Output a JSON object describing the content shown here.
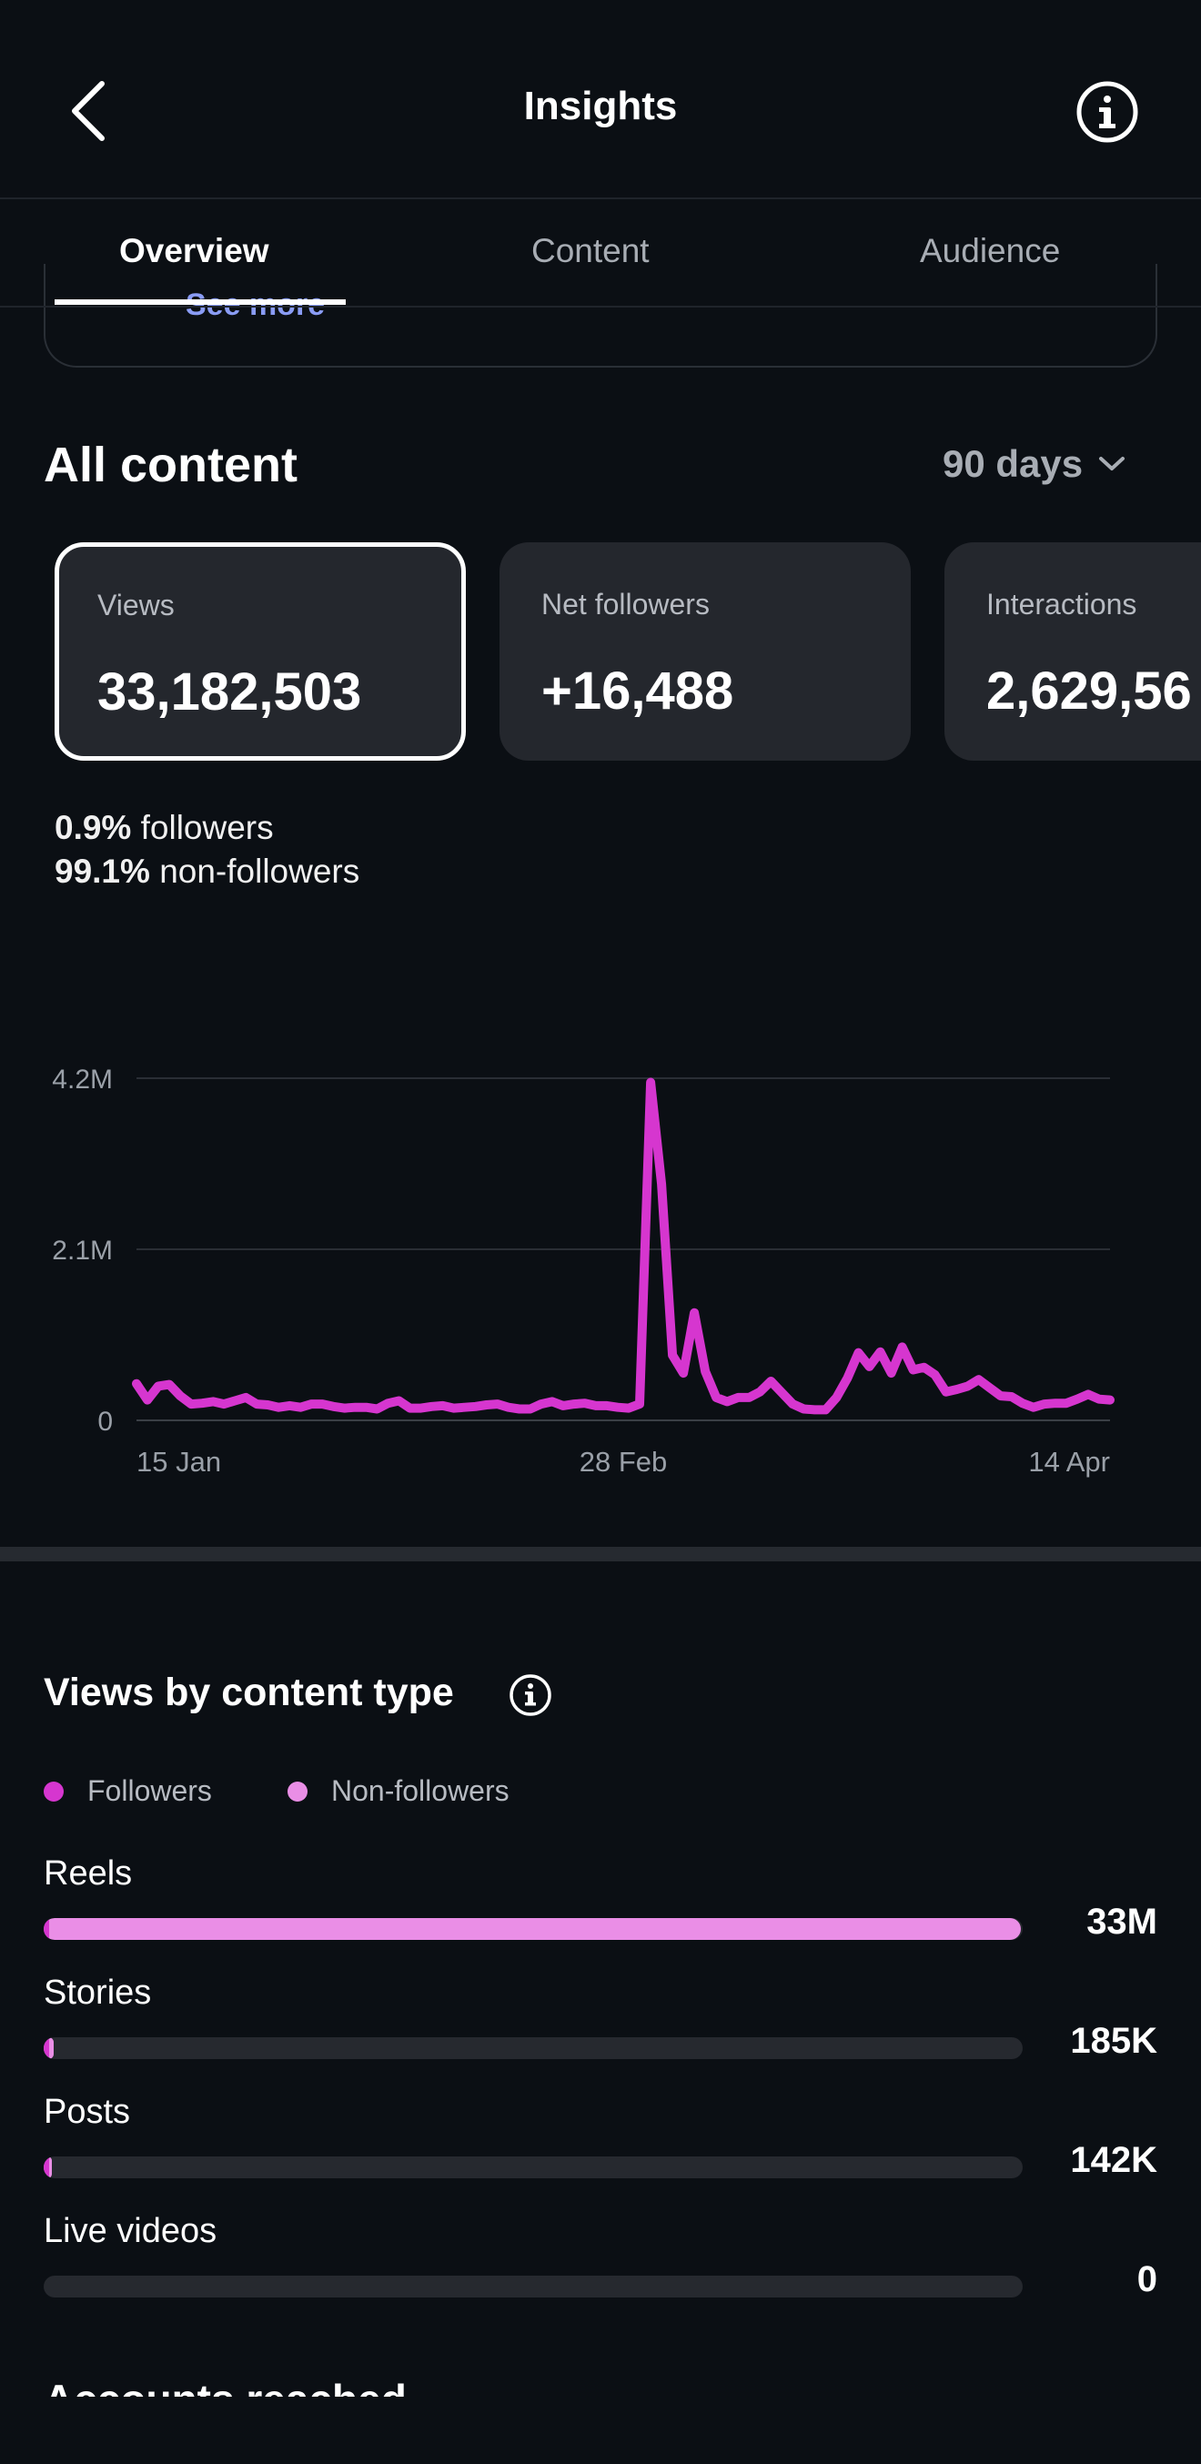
{
  "header": {
    "title": "Insights",
    "back_icon": "chevron-left-icon",
    "info_icon": "info-icon"
  },
  "tabs": [
    {
      "label": "Overview",
      "active": true
    },
    {
      "label": "Content",
      "active": false
    },
    {
      "label": "Audience",
      "active": false
    }
  ],
  "previous_card": {
    "see_more": "See more"
  },
  "all_content": {
    "title": "All content",
    "range": "90 days",
    "stats": [
      {
        "label": "Views",
        "value": "33,182,503",
        "selected": true
      },
      {
        "label": "Net followers",
        "value": "+16,488",
        "selected": false
      },
      {
        "label": "Interactions",
        "value": "2,629,56",
        "selected": false
      }
    ],
    "breakdown": [
      {
        "pct": "0.9%",
        "text": "followers"
      },
      {
        "pct": "99.1%",
        "text": "non-followers"
      }
    ]
  },
  "chart_data": {
    "type": "line",
    "y_ticks": [
      "4.2M",
      "2.1M",
      "0"
    ],
    "x_ticks": [
      "15 Jan",
      "28 Feb",
      "14 Apr"
    ],
    "ylim": [
      0,
      4200000
    ],
    "x_range": [
      "15 Jan",
      "14 Apr"
    ],
    "grid": true,
    "color": "#d636cf",
    "series": [
      {
        "values": [
          450000,
          250000,
          420000,
          440000,
          300000,
          200000,
          210000,
          230000,
          200000,
          240000,
          280000,
          200000,
          190000,
          160000,
          180000,
          160000,
          200000,
          200000,
          170000,
          150000,
          160000,
          160000,
          140000,
          210000,
          240000,
          150000,
          150000,
          170000,
          180000,
          150000,
          160000,
          170000,
          190000,
          200000,
          160000,
          140000,
          140000,
          200000,
          230000,
          180000,
          200000,
          210000,
          180000,
          180000,
          160000,
          150000,
          200000,
          4150000,
          2900000,
          800000,
          580000,
          1320000,
          600000,
          280000,
          230000,
          280000,
          280000,
          350000,
          480000,
          340000,
          200000,
          140000,
          130000,
          130000,
          280000,
          520000,
          830000,
          660000,
          840000,
          580000,
          900000,
          620000,
          650000,
          560000,
          350000,
          380000,
          420000,
          500000,
          400000,
          300000,
          290000,
          210000,
          160000,
          200000,
          210000,
          210000,
          260000,
          320000,
          260000,
          250000
        ]
      }
    ]
  },
  "views_by_content_type": {
    "title": "Views by content type",
    "info_icon": "info-icon",
    "legend": [
      {
        "label": "Followers",
        "color": "#d636cf"
      },
      {
        "label": "Non-followers",
        "color": "#ea8ee6"
      }
    ],
    "rows": [
      {
        "label": "Reels",
        "value": "33M",
        "followers_fraction": 0.005,
        "nonfollowers_fraction": 0.993
      },
      {
        "label": "Stories",
        "value": "185K",
        "followers_fraction": 0.004,
        "nonfollowers_fraction": 0.006
      },
      {
        "label": "Posts",
        "value": "142K",
        "followers_fraction": 0.003,
        "nonfollowers_fraction": 0.005
      },
      {
        "label": "Live videos",
        "value": "0",
        "followers_fraction": 0,
        "nonfollowers_fraction": 0
      }
    ]
  },
  "next_section": {
    "title": "Accounts reached"
  }
}
